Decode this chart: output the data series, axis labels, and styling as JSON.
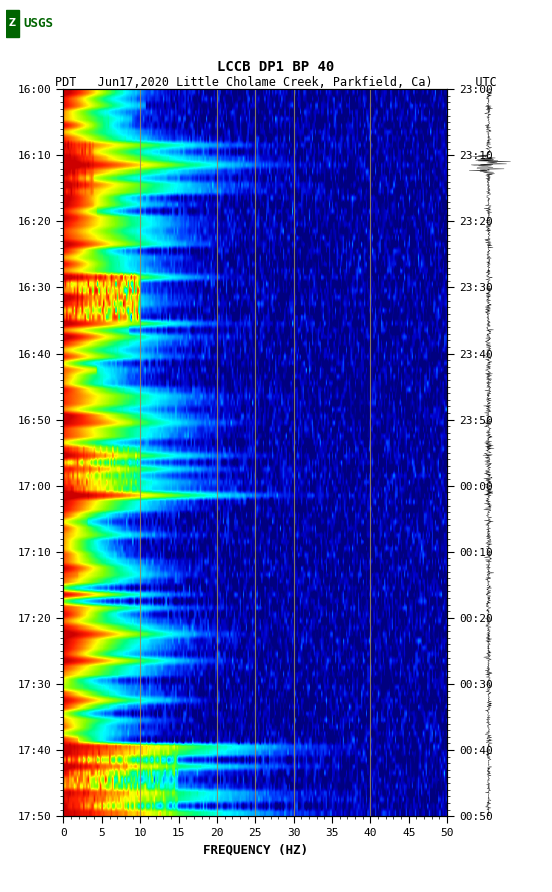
{
  "title_line1": "LCCB DP1 BP 40",
  "title_line2": "PDT   Jun17,2020 Little Cholame Creek, Parkfield, Ca)      UTC",
  "left_time_labels": [
    "16:00",
    "16:10",
    "16:20",
    "16:30",
    "16:40",
    "16:50",
    "17:00",
    "17:10",
    "17:20",
    "17:30",
    "17:40",
    "17:50"
  ],
  "right_time_labels": [
    "23:00",
    "23:10",
    "23:20",
    "23:30",
    "23:40",
    "23:50",
    "00:00",
    "00:10",
    "00:20",
    "00:30",
    "00:40",
    "00:50"
  ],
  "freq_min": 0,
  "freq_max": 50,
  "freq_ticks": [
    0,
    5,
    10,
    15,
    20,
    25,
    30,
    35,
    40,
    45,
    50
  ],
  "xlabel": "FREQUENCY (HZ)",
  "freq_gridlines": [
    10,
    20,
    25,
    30,
    40
  ],
  "background_color": "#ffffff",
  "logo_color": "#006400",
  "num_time_bins": 110,
  "num_freq_bins": 250,
  "colormap_colors": [
    "#000080",
    "#0000CD",
    "#0040FF",
    "#00AAFF",
    "#00FFFF",
    "#00FF80",
    "#80FF00",
    "#FFFF00",
    "#FF8000",
    "#FF2000",
    "#CC0000"
  ],
  "vmin_pct": 20,
  "vmax_pct": 99.5
}
